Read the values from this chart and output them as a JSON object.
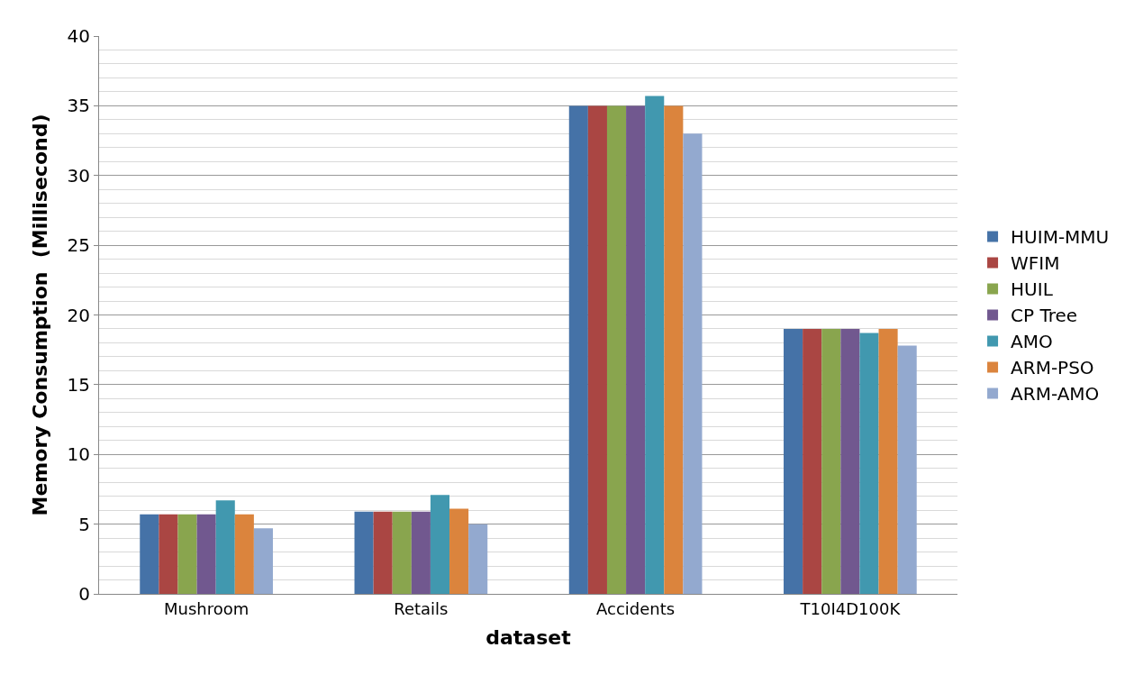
{
  "chart_data": {
    "type": "bar",
    "xlabel": "dataset",
    "ylabel": "Memory Consumption  (Millisecond)",
    "categories": [
      "Mushroom",
      "Retails",
      "Accidents",
      "T10I4D100K"
    ],
    "series": [
      {
        "name": "HUIM-MMU",
        "color": "#4572a7",
        "values": [
          5.7,
          5.9,
          35,
          19
        ]
      },
      {
        "name": "WFIM",
        "color": "#aa4643",
        "values": [
          5.7,
          5.9,
          35,
          19
        ]
      },
      {
        "name": "HUIL",
        "color": "#89a54e",
        "values": [
          5.7,
          5.9,
          35,
          19
        ]
      },
      {
        "name": "CP Tree",
        "color": "#71588f",
        "values": [
          5.7,
          5.9,
          35,
          19
        ]
      },
      {
        "name": "AMO",
        "color": "#4198af",
        "values": [
          6.7,
          7.1,
          35.7,
          18.7
        ]
      },
      {
        "name": "ARM-PSO",
        "color": "#db843d",
        "values": [
          5.7,
          6.1,
          35,
          19
        ]
      },
      {
        "name": "ARM-AMO",
        "color": "#93a9cf",
        "values": [
          4.7,
          5.0,
          33,
          17.8
        ]
      }
    ],
    "ylim": [
      0,
      40
    ],
    "yticks": [
      0,
      5,
      10,
      15,
      20,
      25,
      30,
      35,
      40
    ],
    "grid": "y",
    "legend": "right"
  }
}
